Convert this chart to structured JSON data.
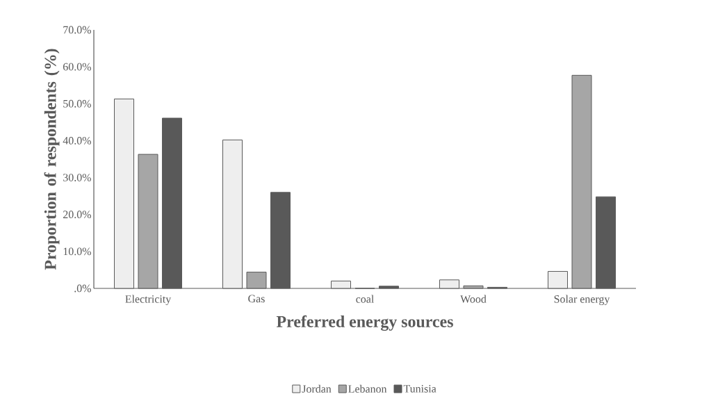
{
  "chart_data": {
    "type": "bar",
    "xlabel": "Preferred energy sources",
    "ylabel": "Proportion of respondents (%)",
    "categories": [
      "Electricity",
      "Gas",
      "coal",
      "Wood",
      "Solar energy"
    ],
    "series": [
      {
        "name": "Jordan",
        "color": "#eeeeee",
        "values": [
          51.3,
          40.2,
          2.0,
          2.3,
          4.6
        ]
      },
      {
        "name": "Lebanon",
        "color": "#a6a6a6",
        "values": [
          36.3,
          4.4,
          0,
          0.7,
          57.7
        ]
      },
      {
        "name": "Tunisia",
        "color": "#595959",
        "values": [
          46.1,
          26.0,
          0.6,
          0.3,
          24.8
        ]
      }
    ],
    "ylim": [
      0,
      70
    ],
    "yticks": [
      {
        "value": 0,
        "label": ".0%"
      },
      {
        "value": 10,
        "label": "10.0%"
      },
      {
        "value": 20,
        "label": "20.0%"
      },
      {
        "value": 30,
        "label": "30.0%"
      },
      {
        "value": 40,
        "label": "40.0%"
      },
      {
        "value": 50,
        "label": "50.0%"
      },
      {
        "value": 60,
        "label": "60.0%"
      },
      {
        "value": 70,
        "label": "70.0%"
      }
    ],
    "grid": false,
    "legend": "bottom"
  }
}
